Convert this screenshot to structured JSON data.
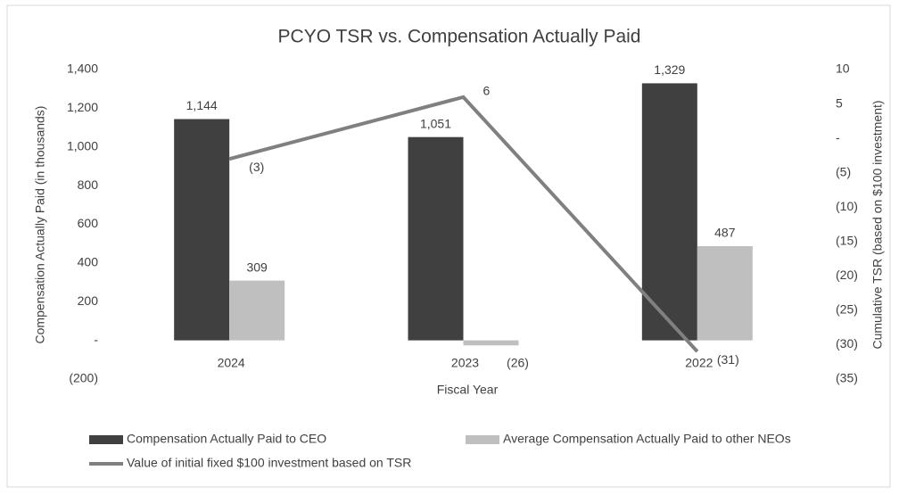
{
  "chart_data": {
    "type": "bar",
    "title": "PCYO TSR vs. Compensation Actually Paid",
    "x_label": "Fiscal Year",
    "y_label": "Compensation Actually Paid (in thousands)",
    "y2_label": "Cumulative TSR (based on $100 investment)",
    "categories": [
      "2024",
      "2023",
      "2022"
    ],
    "series": [
      {
        "name": "Compensation Actually Paid to CEO",
        "type": "bar",
        "color": "#404040",
        "values": [
          1144,
          1051,
          1329
        ],
        "value_labels": [
          "1,144",
          "1,051",
          "1,329"
        ]
      },
      {
        "name": "Average  Compensation Actually Paid to other NEOs",
        "type": "bar",
        "color": "#bfbfbf",
        "values": [
          309,
          -26,
          487
        ],
        "value_labels": [
          "309",
          "(26)",
          "487"
        ]
      },
      {
        "name": "Value of initial fixed $100 investment based on TSR",
        "type": "line",
        "color": "#808080",
        "axis": "y2",
        "values": [
          -3,
          6,
          -31
        ],
        "value_labels": [
          "(3)",
          "6",
          "(31)"
        ]
      }
    ],
    "ylim": [
      -200,
      1400
    ],
    "yticks": [
      {
        "value": -200,
        "label": "(200)"
      },
      {
        "value": 0,
        "label": "-"
      },
      200,
      400,
      600,
      800,
      {
        "value": 1000,
        "label": "1,000"
      },
      {
        "value": 1200,
        "label": "1,200"
      },
      {
        "value": 1400,
        "label": "1,400"
      }
    ],
    "y2lim": [
      -35,
      10
    ],
    "y2ticks": [
      {
        "value": -35,
        "label": "(35)"
      },
      {
        "value": -30,
        "label": "(30)"
      },
      {
        "value": -25,
        "label": "(25)"
      },
      {
        "value": -20,
        "label": "(20)"
      },
      {
        "value": -15,
        "label": "(15)"
      },
      {
        "value": -10,
        "label": "(10)"
      },
      {
        "value": -5,
        "label": "(5)"
      },
      {
        "value": 0,
        "label": "-"
      },
      5,
      10
    ],
    "grid": false
  }
}
